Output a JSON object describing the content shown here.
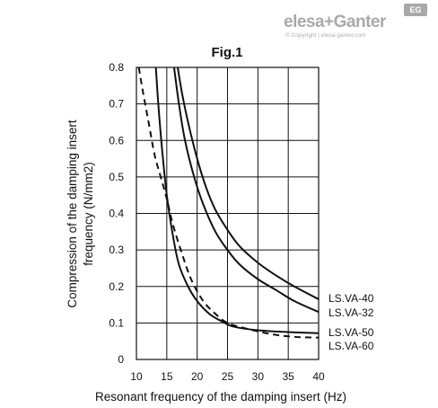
{
  "logo": {
    "name": "elesa+Ganter",
    "badge": "EG",
    "copyright": "© Copyright | elesa-ganter.com",
    "color": "#a9a9a9"
  },
  "chart_data": {
    "type": "line",
    "title": "Fig.1",
    "xlabel": "Resonant frequency of the damping insert (Hz)",
    "ylabel": "Compression of the damping insert frequency (N/mm2)",
    "ylabel_lines": [
      "Compression of the damping insert",
      "frequency (N/mm2)"
    ],
    "xlim": [
      10,
      40
    ],
    "ylim": [
      0,
      0.8
    ],
    "xticks": [
      "10",
      "15",
      "20",
      "25",
      "30",
      "35",
      "40"
    ],
    "yticks": [
      "0",
      "0.1",
      "0.2",
      "0.3",
      "0.4",
      "0.5",
      "0.6",
      "0.7",
      "0.8"
    ],
    "grid": true,
    "series": [
      {
        "name": "LS.VA-40",
        "style": "solid",
        "x": [
          16.8,
          17.5,
          18.5,
          20,
          21.5,
          23,
          25,
          27,
          30,
          33,
          36,
          40
        ],
        "y": [
          0.8,
          0.73,
          0.65,
          0.55,
          0.47,
          0.41,
          0.355,
          0.31,
          0.265,
          0.23,
          0.2,
          0.165
        ]
      },
      {
        "name": "LS.VA-32",
        "style": "solid",
        "x": [
          16.2,
          17,
          18,
          19.5,
          21,
          23,
          25,
          27,
          30,
          33,
          36,
          40
        ],
        "y": [
          0.8,
          0.7,
          0.6,
          0.5,
          0.425,
          0.35,
          0.3,
          0.26,
          0.22,
          0.19,
          0.16,
          0.13
        ]
      },
      {
        "name": "LS.VA-50",
        "style": "solid",
        "x": [
          13.2,
          13.6,
          14.2,
          15,
          16,
          17,
          18.5,
          20,
          22,
          24,
          26,
          30,
          35,
          40
        ],
        "y": [
          0.8,
          0.7,
          0.58,
          0.45,
          0.34,
          0.26,
          0.2,
          0.16,
          0.125,
          0.105,
          0.09,
          0.08,
          0.075,
          0.072
        ]
      },
      {
        "name": "LS.VA-60",
        "style": "dashed",
        "x": [
          10.4,
          11,
          12,
          13,
          14,
          15,
          16,
          17.5,
          19,
          21,
          23,
          25,
          28,
          32,
          36,
          40
        ],
        "y": [
          0.8,
          0.74,
          0.65,
          0.56,
          0.5,
          0.44,
          0.37,
          0.29,
          0.22,
          0.16,
          0.125,
          0.1,
          0.085,
          0.07,
          0.062,
          0.06
        ]
      }
    ],
    "legend_placement": "right of plot, aligned with line ends"
  }
}
